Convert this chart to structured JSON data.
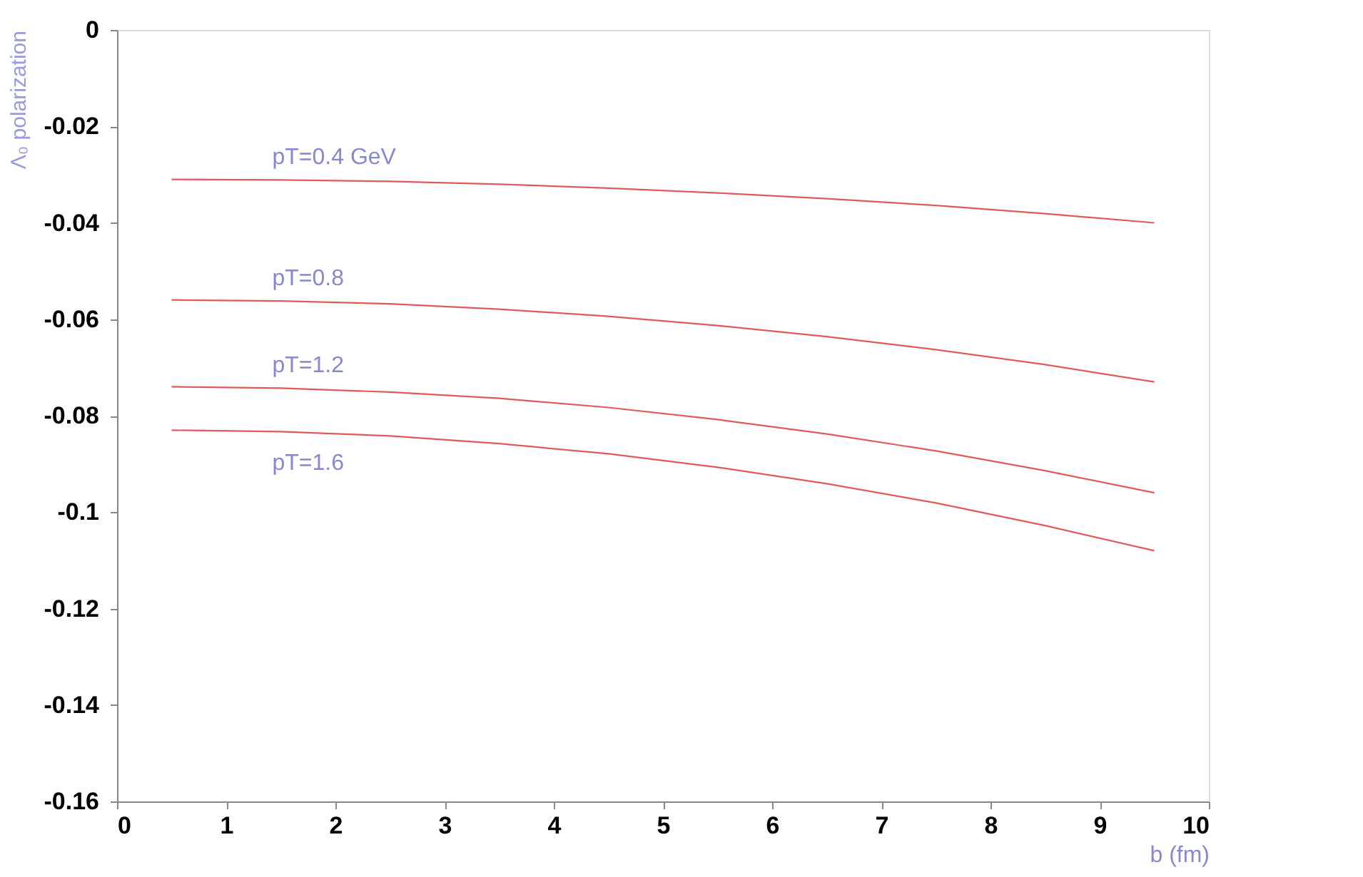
{
  "chart_data": {
    "type": "line",
    "xlabel": "b (fm)",
    "ylabel": "Λ₀ polarization",
    "x": [
      0.5,
      1.5,
      2.5,
      3.5,
      4.5,
      5.5,
      6.5,
      7.5,
      8.5,
      9.5
    ],
    "series": [
      {
        "name": "pT=0.4 GeV",
        "color": "#e05a5a",
        "values": [
          -0.031,
          -0.0311,
          -0.0314,
          -0.032,
          -0.0328,
          -0.0338,
          -0.035,
          -0.0364,
          -0.0381,
          -0.04
        ]
      },
      {
        "name": "pT=0.8",
        "color": "#e05a5a",
        "values": [
          -0.056,
          -0.0562,
          -0.0568,
          -0.0579,
          -0.0594,
          -0.0613,
          -0.0636,
          -0.0663,
          -0.0694,
          -0.073
        ]
      },
      {
        "name": "pT=1.2",
        "color": "#e05a5a",
        "values": [
          -0.074,
          -0.0743,
          -0.0751,
          -0.0764,
          -0.0783,
          -0.0808,
          -0.0838,
          -0.0873,
          -0.0914,
          -0.096
        ]
      },
      {
        "name": "pT=1.6",
        "color": "#e05a5a",
        "values": [
          -0.083,
          -0.0833,
          -0.0842,
          -0.0858,
          -0.0879,
          -0.0907,
          -0.0941,
          -0.0981,
          -0.1028,
          -0.108
        ]
      }
    ],
    "xlim": [
      0,
      10
    ],
    "xticks": [
      0,
      1,
      2,
      3,
      4,
      5,
      6,
      7,
      8,
      9,
      10
    ],
    "ylim": [
      -0.16,
      0
    ],
    "yticks": [
      {
        "value": -0.16,
        "label": "-0.16"
      },
      {
        "value": -0.14,
        "label": "-0.14"
      },
      {
        "value": -0.12,
        "label": "-0.12"
      },
      {
        "value": -0.1,
        "label": "-0.1"
      },
      {
        "value": -0.08,
        "label": "-0.08"
      },
      {
        "value": -0.06,
        "label": "-0.06"
      },
      {
        "value": -0.04,
        "label": "-0.04"
      },
      {
        "value": -0.02,
        "label": "-0.02"
      },
      0
    ],
    "grid": false,
    "legend": false,
    "marker": "none",
    "line_style": "solid"
  }
}
